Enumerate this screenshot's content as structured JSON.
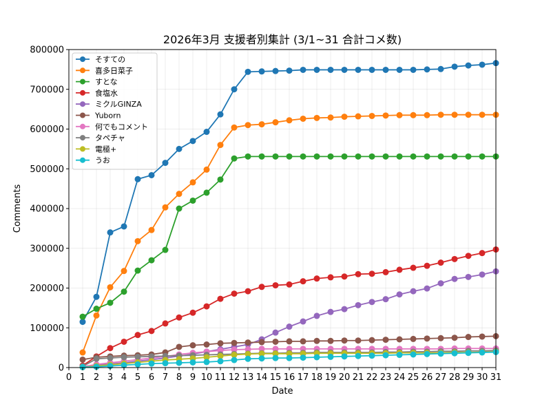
{
  "chart_data": {
    "type": "line",
    "title": "2026年3月 支援者別集計 (3/1~31 合計コメ数)",
    "xlabel": "Date",
    "ylabel": "Comments",
    "xlim": [
      0,
      31
    ],
    "ylim": [
      0,
      800000
    ],
    "x_ticks": [
      0,
      1,
      2,
      3,
      4,
      5,
      6,
      7,
      8,
      9,
      10,
      11,
      12,
      13,
      14,
      15,
      16,
      17,
      18,
      19,
      20,
      21,
      22,
      23,
      24,
      25,
      26,
      27,
      28,
      29,
      30,
      31
    ],
    "y_ticks": [
      0,
      100000,
      200000,
      300000,
      400000,
      500000,
      600000,
      700000,
      800000
    ],
    "grid": true,
    "legend_position": "upper-left",
    "x": [
      1,
      2,
      3,
      4,
      5,
      6,
      7,
      8,
      9,
      10,
      11,
      12,
      13,
      14,
      15,
      16,
      17,
      18,
      19,
      20,
      21,
      22,
      23,
      24,
      25,
      26,
      27,
      28,
      29,
      30,
      31
    ],
    "series": [
      {
        "name": "そすての",
        "color": "#1f77b4",
        "values": [
          115000,
          178000,
          340000,
          355000,
          474000,
          484000,
          515000,
          550000,
          570000,
          593000,
          637000,
          700000,
          744000,
          745000,
          746000,
          747000,
          749000,
          749000,
          749000,
          749000,
          749000,
          749000,
          749000,
          749000,
          749000,
          750000,
          751000,
          757000,
          760000,
          762000,
          766000
        ]
      },
      {
        "name": "喜多日菜子",
        "color": "#ff7f0e",
        "values": [
          38000,
          131000,
          202000,
          243000,
          318000,
          346000,
          403000,
          437000,
          466000,
          498000,
          560000,
          604000,
          610000,
          612000,
          617000,
          622000,
          626000,
          628000,
          629000,
          631000,
          632000,
          633000,
          634000,
          635000,
          635000,
          635000,
          636000,
          636000,
          636000,
          636000,
          636000
        ]
      },
      {
        "name": "すとな",
        "color": "#2ca02c",
        "values": [
          128000,
          148000,
          163000,
          191000,
          244000,
          270000,
          296000,
          400000,
          420000,
          440000,
          473000,
          526000,
          531000,
          531000,
          531000,
          531000,
          531000,
          531000,
          531000,
          531000,
          531000,
          531000,
          531000,
          531000,
          531000,
          531000,
          531000,
          531000,
          531000,
          531000,
          531000
        ]
      },
      {
        "name": "食塩水",
        "color": "#d62728",
        "values": [
          5000,
          28000,
          49000,
          65000,
          82000,
          92000,
          111000,
          126000,
          138000,
          154000,
          173000,
          186000,
          192000,
          203000,
          207000,
          209000,
          217000,
          224000,
          227000,
          229000,
          235000,
          236000,
          240000,
          246000,
          251000,
          256000,
          264000,
          273000,
          281000,
          288000,
          297000
        ]
      },
      {
        "name": "ミクルGINZA",
        "color": "#9467bd",
        "values": [
          3000,
          6000,
          9000,
          12000,
          16000,
          20000,
          24000,
          29000,
          34000,
          40000,
          46000,
          52000,
          58000,
          71000,
          88000,
          103000,
          116000,
          130000,
          140000,
          147000,
          157000,
          165000,
          172000,
          184000,
          192000,
          199000,
          212000,
          223000,
          228000,
          234000,
          242000
        ]
      },
      {
        "name": "Yuborn",
        "color": "#8c564b",
        "values": [
          20000,
          26000,
          28000,
          30000,
          31000,
          33000,
          38000,
          52000,
          56000,
          58000,
          61000,
          62000,
          63000,
          64000,
          65000,
          66000,
          66000,
          67000,
          67000,
          68000,
          68000,
          69000,
          70000,
          71000,
          72000,
          73000,
          74000,
          75000,
          77000,
          78000,
          79000
        ]
      },
      {
        "name": "何でもコメント",
        "color": "#e377c2",
        "values": [
          2000,
          8000,
          12000,
          16000,
          20000,
          24000,
          28000,
          33000,
          37000,
          40000,
          43000,
          45000,
          46000,
          47000,
          47000,
          47000,
          47000,
          47000,
          47000,
          47000,
          47000,
          47000,
          47000,
          47000,
          47000,
          47000,
          47000,
          48000,
          48000,
          48000,
          48000
        ]
      },
      {
        "name": "タペチャ",
        "color": "#7f7f7f",
        "values": [
          3000,
          22000,
          24000,
          26000,
          27000,
          28000,
          29000,
          30000,
          31000,
          32000,
          33000,
          34000,
          35000,
          36000,
          36000,
          37000,
          37000,
          38000,
          38000,
          38000,
          38000,
          38000,
          39000,
          39000,
          40000,
          40000,
          41000,
          41000,
          42000,
          42000,
          43000
        ]
      },
      {
        "name": "電極+",
        "color": "#bcbd22",
        "values": [
          1000,
          4000,
          7000,
          10000,
          13000,
          16000,
          19000,
          21000,
          23000,
          26000,
          29000,
          32000,
          34000,
          35000,
          35000,
          35000,
          35000,
          36000,
          36000,
          36000,
          36000,
          36000,
          36000,
          37000,
          37000,
          37000,
          37000,
          38000,
          38000,
          39000,
          40000
        ]
      },
      {
        "name": "うお",
        "color": "#17becf",
        "values": [
          1000,
          2000,
          4000,
          6000,
          8000,
          10000,
          11000,
          12000,
          13000,
          14000,
          16000,
          19000,
          22000,
          23000,
          24000,
          24000,
          25000,
          26000,
          27000,
          28000,
          29000,
          30000,
          31000,
          32000,
          33000,
          34000,
          35000,
          36000,
          37000,
          38000,
          39000
        ]
      }
    ]
  }
}
